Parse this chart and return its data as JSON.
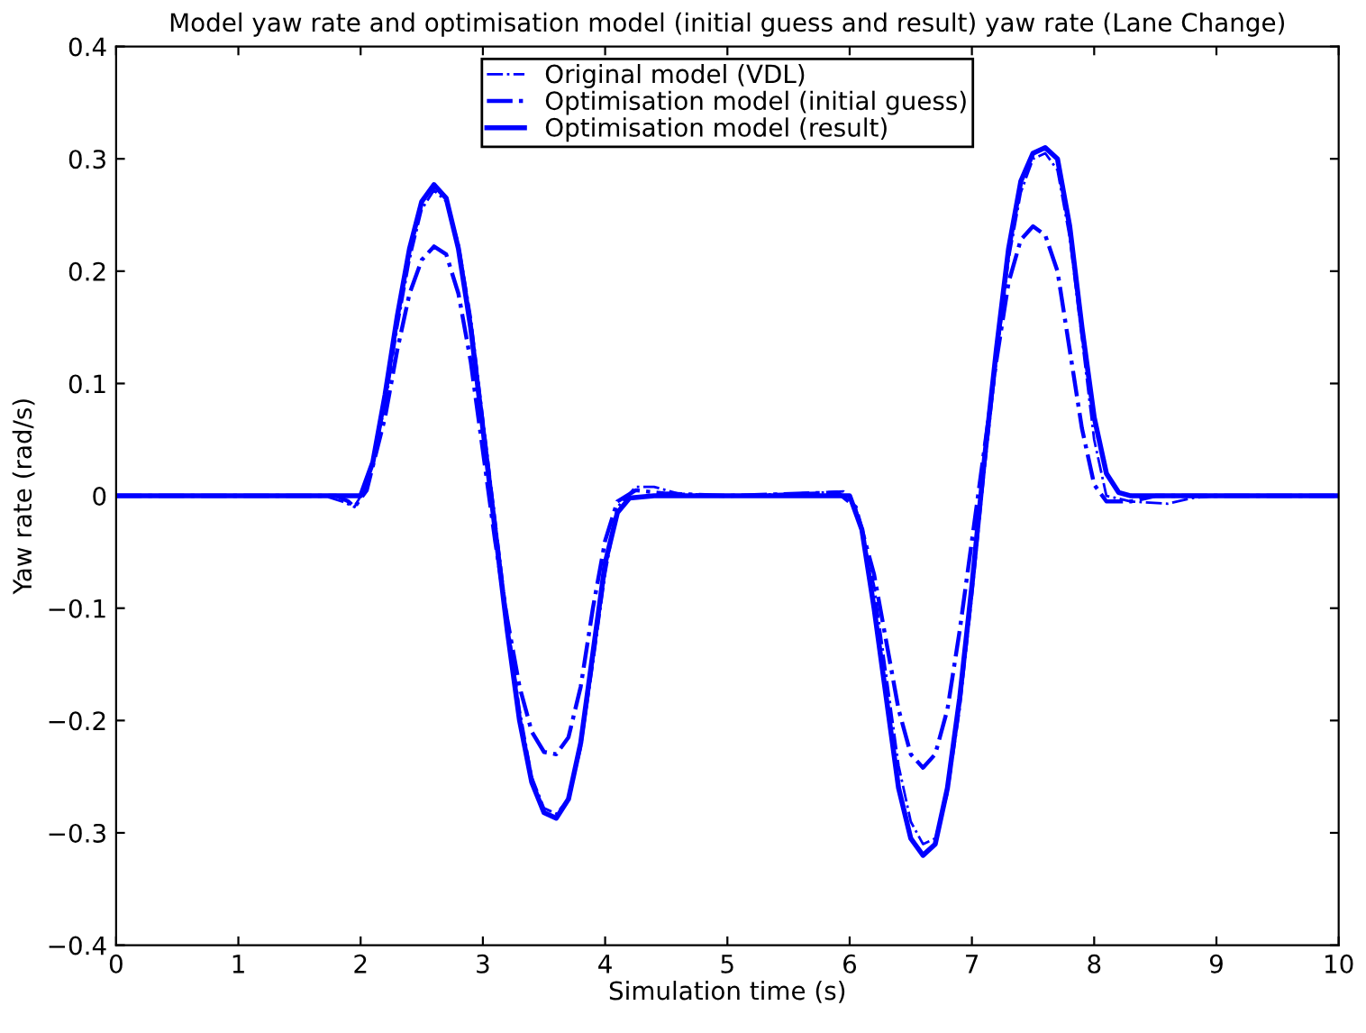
{
  "chart_data": {
    "type": "line",
    "title": "Model yaw rate and optimisation model (initial guess and result) yaw rate (Lane Change)",
    "xlabel": "Simulation time (s)",
    "ylabel": "Yaw rate (rad/s)",
    "xlim": [
      0,
      10
    ],
    "ylim": [
      -0.4,
      0.4
    ],
    "xticks": [
      0,
      1,
      2,
      3,
      4,
      5,
      6,
      7,
      8,
      9,
      10
    ],
    "yticks": [
      -0.4,
      -0.3,
      -0.2,
      -0.1,
      0,
      0.1,
      0.2,
      0.3,
      0.4
    ],
    "grid": false,
    "legend": "top",
    "marker": "none",
    "series": [
      {
        "name": "Original model (VDL)",
        "color": "#0000ff",
        "line_style": "dashdot",
        "x": [
          0,
          1.7,
          1.85,
          1.95,
          2.05,
          2.2,
          2.3,
          2.4,
          2.5,
          2.6,
          2.7,
          2.8,
          2.9,
          3.0,
          3.1,
          3.2,
          3.3,
          3.4,
          3.5,
          3.6,
          3.7,
          3.8,
          3.9,
          4.0,
          4.1,
          4.25,
          4.4,
          4.6,
          5.0,
          5.8,
          5.95,
          6.05,
          6.2,
          6.3,
          6.4,
          6.5,
          6.6,
          6.7,
          6.8,
          6.9,
          7.0,
          7.1,
          7.2,
          7.3,
          7.4,
          7.5,
          7.6,
          7.7,
          7.8,
          7.9,
          8.0,
          8.1,
          8.3,
          8.6,
          8.8,
          9.0,
          10
        ],
        "values": [
          0,
          0,
          -0.005,
          -0.01,
          0.01,
          0.08,
          0.15,
          0.21,
          0.255,
          0.272,
          0.262,
          0.225,
          0.16,
          0.07,
          -0.02,
          -0.11,
          -0.19,
          -0.25,
          -0.278,
          -0.283,
          -0.27,
          -0.225,
          -0.15,
          -0.07,
          -0.01,
          0.008,
          0.008,
          0.002,
          0,
          0.003,
          0.004,
          -0.01,
          -0.08,
          -0.16,
          -0.24,
          -0.29,
          -0.31,
          -0.305,
          -0.265,
          -0.19,
          -0.09,
          0.02,
          0.12,
          0.21,
          0.27,
          0.3,
          0.305,
          0.29,
          0.23,
          0.14,
          0.05,
          0.0,
          -0.005,
          -0.007,
          -0.002,
          0,
          0
        ]
      },
      {
        "name": "Optimisation model (initial guess)",
        "color": "#0000ff",
        "line_style": "dashdot",
        "x": [
          0,
          1.8,
          1.9,
          1.95,
          2.05,
          2.2,
          2.3,
          2.4,
          2.5,
          2.6,
          2.7,
          2.8,
          2.9,
          3.0,
          3.1,
          3.2,
          3.3,
          3.4,
          3.5,
          3.6,
          3.7,
          3.8,
          3.9,
          4.0,
          4.1,
          4.25,
          4.5,
          5.0,
          5.9,
          6.05,
          6.2,
          6.3,
          6.4,
          6.5,
          6.6,
          6.7,
          6.8,
          6.9,
          7.0,
          7.1,
          7.2,
          7.3,
          7.4,
          7.5,
          7.6,
          7.7,
          7.8,
          7.9,
          8.0,
          8.1,
          8.3,
          8.5,
          10
        ],
        "values": [
          0,
          0,
          -0.005,
          -0.01,
          0.005,
          0.07,
          0.13,
          0.18,
          0.21,
          0.222,
          0.215,
          0.18,
          0.12,
          0.04,
          -0.04,
          -0.11,
          -0.17,
          -0.21,
          -0.228,
          -0.23,
          -0.215,
          -0.17,
          -0.1,
          -0.04,
          -0.005,
          0.005,
          0.002,
          0,
          0.003,
          -0.01,
          -0.07,
          -0.13,
          -0.19,
          -0.23,
          -0.242,
          -0.23,
          -0.19,
          -0.12,
          -0.04,
          0.04,
          0.12,
          0.19,
          0.228,
          0.24,
          0.232,
          0.2,
          0.13,
          0.06,
          0.01,
          -0.005,
          -0.005,
          0,
          0
        ]
      },
      {
        "name": "Optimisation model (result)",
        "color": "#0000ff",
        "line_style": "solid",
        "x": [
          0,
          1.9,
          2.0,
          2.1,
          2.2,
          2.3,
          2.4,
          2.5,
          2.6,
          2.7,
          2.8,
          2.9,
          3.0,
          3.1,
          3.2,
          3.3,
          3.4,
          3.5,
          3.6,
          3.7,
          3.8,
          3.9,
          4.0,
          4.1,
          4.2,
          4.4,
          6.0,
          6.1,
          6.2,
          6.3,
          6.4,
          6.5,
          6.6,
          6.7,
          6.8,
          6.9,
          7.0,
          7.1,
          7.2,
          7.3,
          7.4,
          7.5,
          7.6,
          7.7,
          7.8,
          7.9,
          8.0,
          8.1,
          8.2,
          8.3,
          10
        ],
        "values": [
          0,
          0,
          0,
          0.03,
          0.09,
          0.16,
          0.22,
          0.262,
          0.277,
          0.265,
          0.22,
          0.15,
          0.06,
          -0.03,
          -0.12,
          -0.2,
          -0.255,
          -0.282,
          -0.287,
          -0.27,
          -0.22,
          -0.14,
          -0.06,
          -0.015,
          -0.002,
          0,
          0,
          -0.03,
          -0.1,
          -0.18,
          -0.26,
          -0.305,
          -0.32,
          -0.31,
          -0.26,
          -0.18,
          -0.08,
          0.03,
          0.13,
          0.22,
          0.28,
          0.305,
          0.31,
          0.3,
          0.24,
          0.15,
          0.07,
          0.02,
          0.003,
          0,
          0
        ]
      }
    ]
  }
}
